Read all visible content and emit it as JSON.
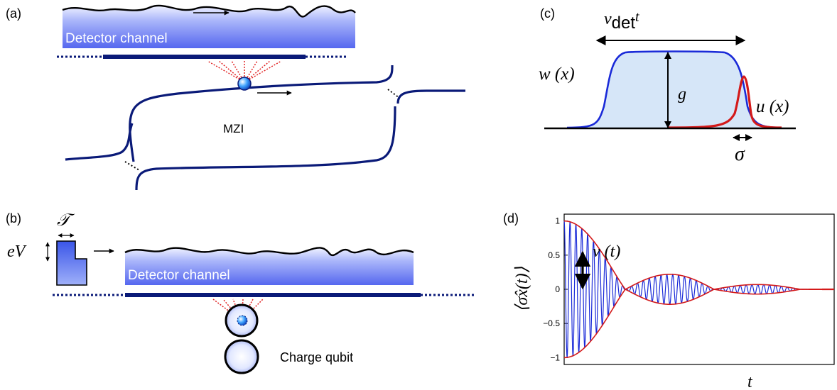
{
  "panels": {
    "a": {
      "tag": "(a)",
      "channel_label": "Detector channel",
      "mzi_label": "MZI"
    },
    "b": {
      "tag": "(b)",
      "pulse_width_symbol": "𝒯",
      "pulse_height_symbol": "eV",
      "channel_label": "Detector channel",
      "qubit_label": "Charge qubit"
    },
    "c": {
      "tag": "(c)",
      "top_label_v": "v",
      "top_label_det": "det",
      "top_label_t": "t",
      "w_label": "w (x)",
      "g_label": "g",
      "u_label": "u (x)",
      "sigma_label": "σ"
    },
    "d": {
      "tag": "(d)",
      "ylabel": "⟨σ̂x(t)⟩",
      "xlabel": "t",
      "v_label": "v (t)"
    }
  },
  "colors": {
    "channel_fill_top": "#5b6ff0",
    "channel_fill_bottom": "#e4e8ff",
    "wire": "#0a1a78",
    "dots": "#e02020",
    "envelope": "#d41a1a",
    "oscillation": "#1a2ad8",
    "w_fill": "#d6e6f8",
    "w_line": "#1a2ad8",
    "u_line": "#d41a1a"
  },
  "chart_data": {
    "type": "line",
    "title": "",
    "xlabel": "t",
    "ylabel": "⟨σ̂x(t)⟩",
    "ylim": [
      -1.1,
      1.1
    ],
    "yticks": [
      1,
      0.5,
      0,
      -0.5,
      -1
    ],
    "ytick_labels": [
      "1",
      "0.5",
      "0",
      "−0.5",
      "−1"
    ],
    "grid": false,
    "series": [
      {
        "kind": "oscillation",
        "carrier_cycles": 46
      },
      {
        "kind": "envelope"
      }
    ],
    "envelope_zeros_t": [
      0.227,
      0.555
    ],
    "envelope_peaks": [
      {
        "t": 0.0,
        "amp": 1.0
      },
      {
        "t": 0.347,
        "amp": 0.22
      },
      {
        "t": 0.646,
        "amp": 0.07
      },
      {
        "t": 1.0,
        "amp": 0.01
      }
    ]
  }
}
